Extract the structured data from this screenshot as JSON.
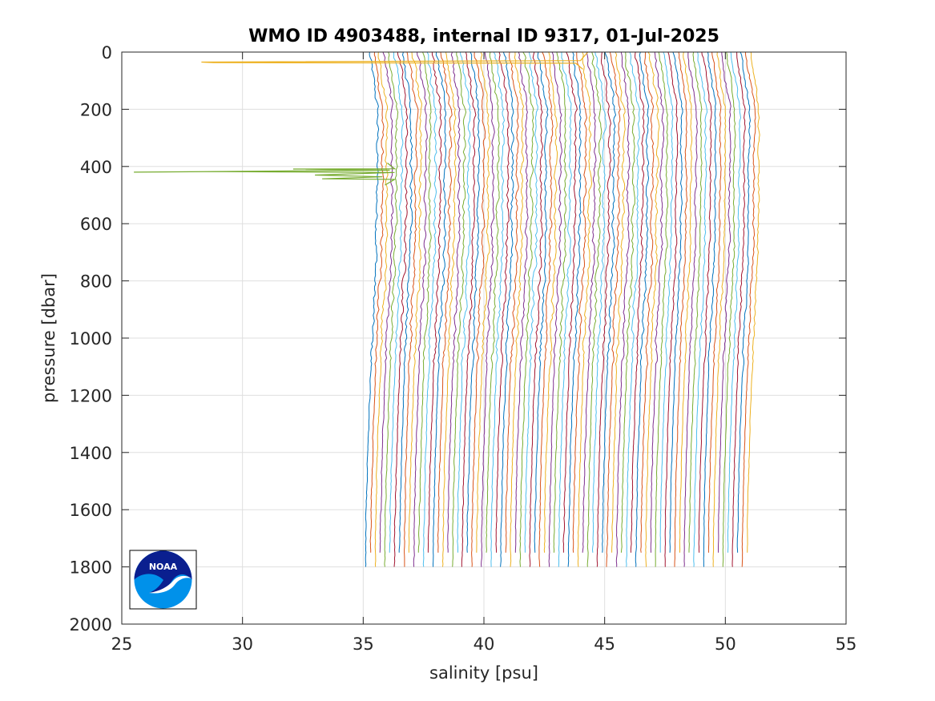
{
  "chart_data": {
    "type": "line",
    "title": "WMO ID 4903488, internal ID 9317, 01-Jul-2025",
    "xlabel": "salinity [psu]",
    "ylabel": "pressure [dbar]",
    "xlim": [
      25,
      55
    ],
    "ylim": [
      0,
      2000
    ],
    "y_reversed": true,
    "x_ticks": [
      25,
      30,
      35,
      40,
      45,
      50,
      55
    ],
    "y_ticks": [
      0,
      200,
      400,
      600,
      800,
      1000,
      1200,
      1400,
      1600,
      1800,
      2000
    ],
    "grid": true,
    "legend": "none",
    "series_count": 80,
    "series_description": "80 salinity profiles, each offset successively by about 0.2 psu, from about 35.2 to 50.9 psu",
    "base_salinity_start": 35.1,
    "offset_per_profile": 0.2,
    "max_pressure_values": [
      1800,
      1750
    ],
    "line_colors": [
      "#0072bd",
      "#d95319",
      "#edb120",
      "#7e2f8e",
      "#77ac30",
      "#4dbeee",
      "#a2142f"
    ],
    "surface_spike": {
      "pressure": 35,
      "salinity_min": 28.3,
      "salinity_max": 44.3,
      "color": "#edb120"
    },
    "deep_spike": {
      "pressure_range": [
        408,
        445
      ],
      "salinity_min": 25.5,
      "salinity_max": 36.3,
      "color": "#77ac30"
    }
  },
  "logo": {
    "text": "NOAA"
  }
}
